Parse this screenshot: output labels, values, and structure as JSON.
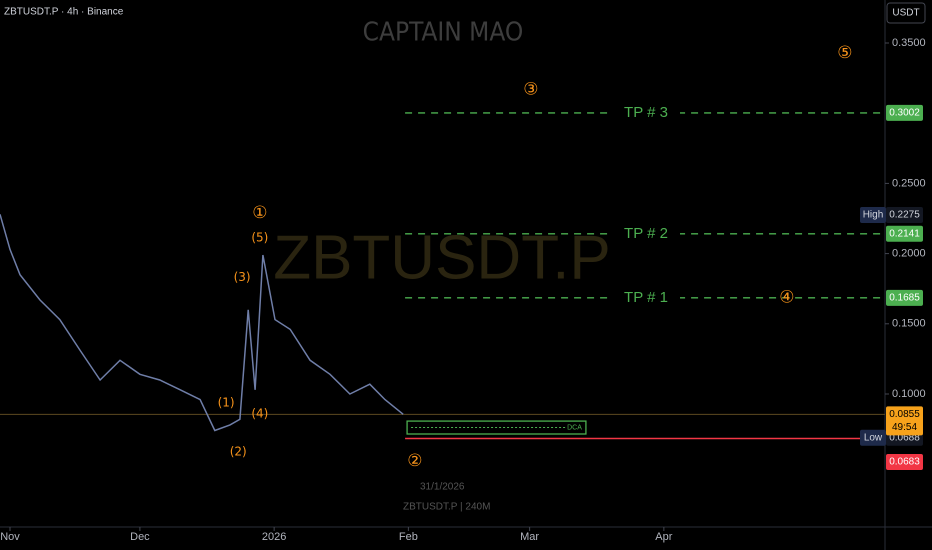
{
  "chart_data": {
    "type": "line",
    "symbol_info": "ZBTUSDT.P · 4h · Binance",
    "currency": "USDT",
    "title": "CAPTAIN MAO",
    "watermark": "ZBTUSDT.P",
    "footer_date": "31/1/2026",
    "footer_symbol": "ZBTUSDT.P | 240M",
    "xlim": [
      -2.31,
      202.07
    ],
    "xticks": [
      {
        "value": 0,
        "label": "Nov"
      },
      {
        "value": 30,
        "label": "Dec"
      },
      {
        "value": 61,
        "label": "2026"
      },
      {
        "value": 92,
        "label": "Feb"
      },
      {
        "value": 120,
        "label": "Mar"
      },
      {
        "value": 151,
        "label": "Apr"
      }
    ],
    "ylim": [
      0.00526,
      0.38063
    ],
    "yticks": [
      {
        "value": 0.1,
        "label": "0.1000"
      },
      {
        "value": 0.15,
        "label": "0.1500"
      },
      {
        "value": 0.2,
        "label": "0.2000"
      },
      {
        "value": 0.25,
        "label": "0.2500"
      },
      {
        "value": 0.35,
        "label": "0.3500"
      }
    ],
    "series": [
      {
        "name": "ZBTUSDT.P",
        "color": "#6f7ea8",
        "x": [
          -2.3,
          0,
          2.3,
          6.9,
          11.5,
          16.2,
          20.8,
          25.4,
          30,
          34.6,
          39.3,
          43.9,
          47.3,
          50.8,
          53.1,
          55,
          56.6,
          58.4,
          61.2,
          64.7,
          69.3,
          73.9,
          78.5,
          83.1,
          86.6,
          90.8
        ],
        "values": [
          0.228,
          0.203,
          0.185,
          0.167,
          0.153,
          0.131,
          0.11,
          0.124,
          0.114,
          0.11,
          0.103,
          0.096,
          0.074,
          0.078,
          0.082,
          0.16,
          0.103,
          0.199,
          0.153,
          0.146,
          0.124,
          0.114,
          0.1,
          0.107,
          0.096,
          0.0855
        ]
      }
    ],
    "targets": [
      {
        "name": "TP # 3",
        "value": 0.3002
      },
      {
        "name": "TP # 2",
        "value": 0.2141
      },
      {
        "name": "TP # 1",
        "value": 0.1685
      }
    ],
    "target_color": "#4caf50",
    "high": {
      "name": "High",
      "value": 0.2275
    },
    "low": {
      "name": "Low",
      "value": 0.0688
    },
    "current_price": {
      "value": 0.0855,
      "countdown": "49:54",
      "color": "#f7a21b"
    },
    "stop_line": {
      "value": 0.0683,
      "color": "#f23645"
    },
    "dca_zone": {
      "label": "DCA",
      "from": 91.7,
      "to": 133,
      "top": 0.0807,
      "bottom": 0.0715
    },
    "wave_labels": [
      {
        "text": "①",
        "x": 57.7,
        "y": 0.229
      },
      {
        "text": "②",
        "x": 93.5,
        "y": 0.0523
      },
      {
        "text": "③",
        "x": 120.3,
        "y": 0.317
      },
      {
        "text": "④",
        "x": 179.4,
        "y": 0.1686
      },
      {
        "text": "⑤",
        "x": 192.8,
        "y": 0.343
      },
      {
        "text": "(1)",
        "x": 49.9,
        "y": 0.0936
      },
      {
        "text": "(2)",
        "x": 52.7,
        "y": 0.0587
      },
      {
        "text": "(3)",
        "x": 53.6,
        "y": 0.183
      },
      {
        "text": "(4)",
        "x": 57.7,
        "y": 0.0857
      },
      {
        "text": "(5)",
        "x": 57.7,
        "y": 0.211
      }
    ],
    "wave_color": "#f7931a"
  }
}
